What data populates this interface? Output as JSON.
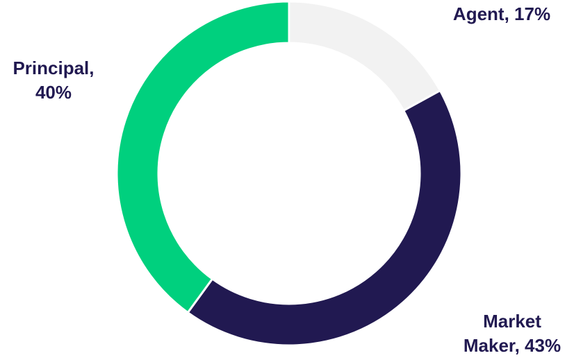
{
  "chart_data": {
    "type": "donut",
    "values": [
      17,
      43,
      40
    ],
    "value_labels": [
      "Agent, 17%",
      "Market Maker, 43%",
      "Principal, 40%"
    ],
    "colors": [
      "#f2f2f2",
      "#211951",
      "#00d07e"
    ]
  }
}
